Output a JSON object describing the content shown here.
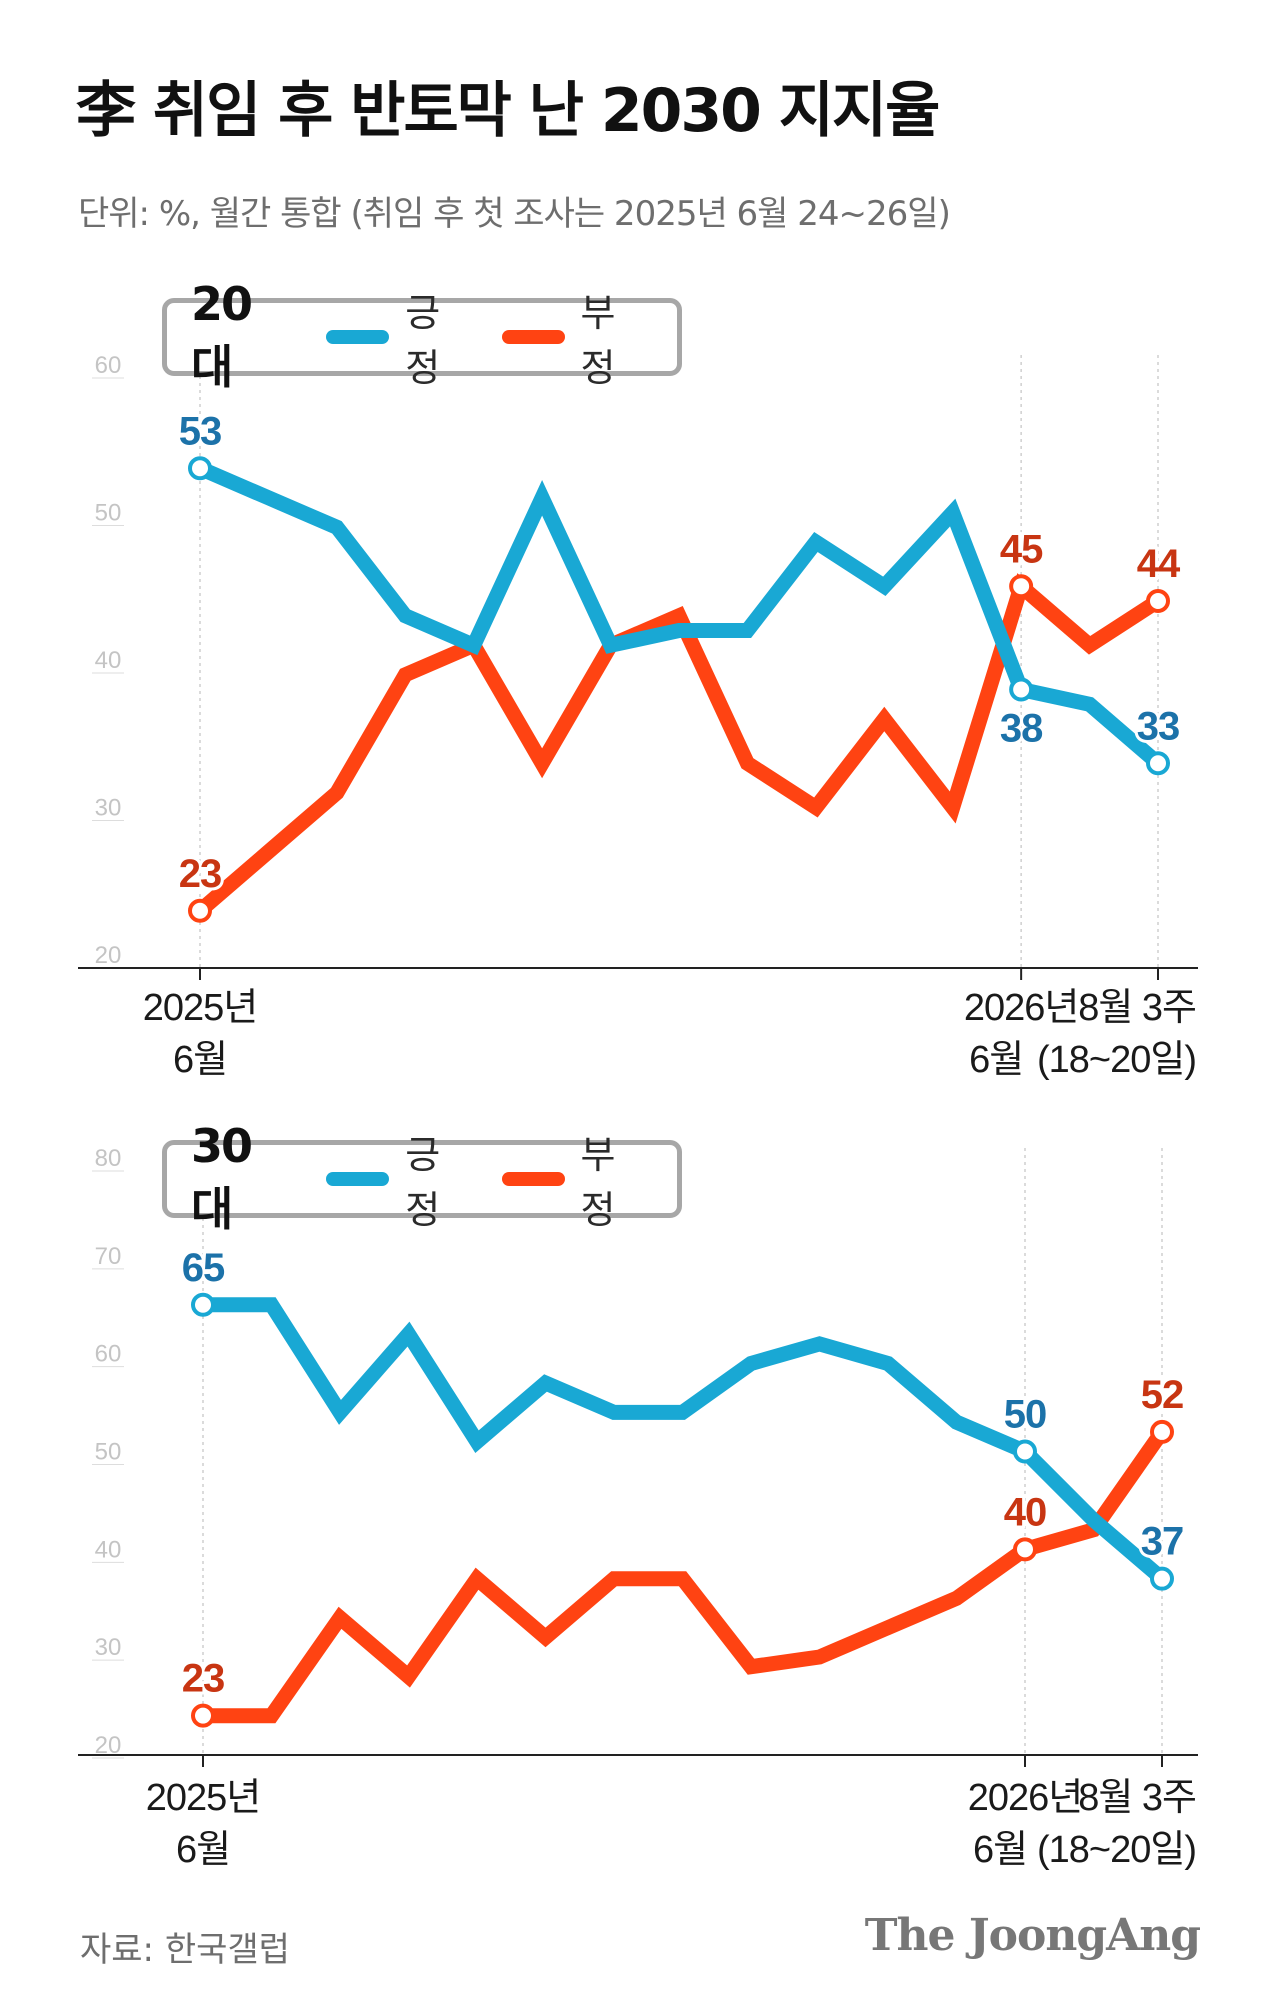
{
  "title": "李 취임 후 반토막 난 2030 지지율",
  "subtitle": "단위: %, 월간 통합 (취임 후 첫 조사는 2025년 6월 24~26일)",
  "source": "자료: 한국갤럽",
  "logo_text": "The JoongAng",
  "colors": {
    "positive": "#19a8d4",
    "negative": "#ff4312",
    "positive_label": "#1c72a9",
    "negative_label": "#c83512",
    "axis": "#cccccc",
    "legend_border": "#a7a7a7"
  },
  "legend": {
    "positive_label": "긍정",
    "negative_label": "부정"
  },
  "chart_data": [
    {
      "type": "line",
      "group": "20대",
      "ylim": [
        20,
        60
      ],
      "yticks": [
        "20",
        "30",
        "40",
        "50",
        "60"
      ],
      "x_labels": [
        {
          "index": 0,
          "lines": [
            "2025년",
            "6월"
          ]
        },
        {
          "index": 12,
          "lines": [
            "2026년",
            "6월"
          ]
        },
        {
          "index": 14,
          "lines": [
            "8월 3주",
            "(18~20일)"
          ]
        }
      ],
      "series": [
        {
          "name": "긍정",
          "values": [
            53,
            51,
            49,
            43,
            41,
            51,
            41,
            42,
            42,
            48,
            45,
            50,
            38,
            37,
            33
          ],
          "labels": [
            {
              "index": 0,
              "text": "53"
            },
            {
              "index": 12,
              "text": "38"
            },
            {
              "index": 14,
              "text": "33"
            }
          ]
        },
        {
          "name": "부정",
          "values": [
            23,
            27,
            31,
            39,
            41,
            33,
            41,
            43,
            33,
            30,
            36,
            30,
            45,
            41,
            44
          ],
          "labels": [
            {
              "index": 0,
              "text": "23"
            },
            {
              "index": 12,
              "text": "45"
            },
            {
              "index": 14,
              "text": "44"
            }
          ]
        }
      ]
    },
    {
      "type": "line",
      "group": "30대",
      "ylim": [
        20,
        80
      ],
      "yticks": [
        "20",
        "30",
        "40",
        "50",
        "60",
        "70",
        "80"
      ],
      "x_labels": [
        {
          "index": 0,
          "lines": [
            "2025년",
            "6월"
          ]
        },
        {
          "index": 12,
          "lines": [
            "2026년",
            "6월"
          ]
        },
        {
          "index": 14,
          "lines": [
            "8월 3주",
            "(18~20일)"
          ]
        }
      ],
      "series": [
        {
          "name": "긍정",
          "values": [
            65,
            65,
            54,
            62,
            51,
            57,
            54,
            54,
            59,
            61,
            59,
            53,
            50,
            43,
            37
          ],
          "labels": [
            {
              "index": 0,
              "text": "65"
            },
            {
              "index": 12,
              "text": "50"
            },
            {
              "index": 14,
              "text": "37"
            }
          ]
        },
        {
          "name": "부정",
          "values": [
            23,
            23,
            33,
            27,
            37,
            31,
            37,
            37,
            28,
            29,
            32,
            35,
            40,
            42,
            52
          ],
          "labels": [
            {
              "index": 0,
              "text": "23"
            },
            {
              "index": 12,
              "text": "40"
            },
            {
              "index": 14,
              "text": "52"
            }
          ]
        }
      ]
    }
  ]
}
